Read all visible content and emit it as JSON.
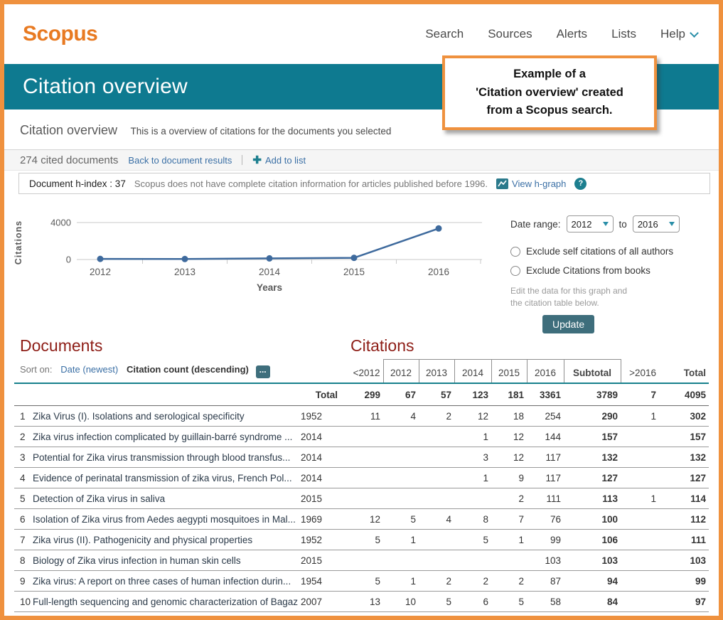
{
  "header": {
    "logo": "Scopus",
    "nav": [
      "Search",
      "Sources",
      "Alerts",
      "Lists",
      "Help"
    ]
  },
  "banner": {
    "title": "Citation overview"
  },
  "annotation": {
    "lines": [
      "Example of a",
      "'Citation overview' created",
      "from a Scopus search."
    ]
  },
  "subtitle": {
    "title": "Citation overview",
    "description": "This is a overview of citations for the documents you selected"
  },
  "toolbar": {
    "cited_documents": "274 cited documents",
    "back_link": "Back to document results",
    "add_to_list": "Add to list"
  },
  "hindex": {
    "label": "Document h-index : 37",
    "note": "Scopus does not have complete citation information for articles published before 1996.",
    "view_link": "View h-graph"
  },
  "chart_data": {
    "type": "line",
    "title": "",
    "x": [
      2012,
      2013,
      2014,
      2015,
      2016
    ],
    "values": [
      67,
      57,
      123,
      181,
      3361
    ],
    "xlabel": "Years",
    "ylabel": "Citations",
    "yticks": [
      0,
      4000
    ],
    "ylim": [
      0,
      4000
    ],
    "grid": "horizontal",
    "legend": "none",
    "line_color": "#3e6a9d"
  },
  "controls": {
    "date_range_label": "Date range:",
    "from_value": "2012",
    "to_label": "to",
    "to_value": "2016",
    "checkbox_self": "Exclude self citations of all authors",
    "checkbox_books": "Exclude Citations from books",
    "note_line1": "Edit the data for this graph and",
    "note_line2": "the citation table below.",
    "update_label": "Update"
  },
  "sections": {
    "documents": "Documents",
    "citations": "Citations"
  },
  "sort": {
    "label": "Sort on:",
    "date_option": "Date (newest)",
    "count_option": "Citation count (descending)",
    "more": "..."
  },
  "icons": {
    "plus": "✚",
    "question": "?"
  },
  "table": {
    "year_columns": [
      "<2012",
      "2012",
      "2013",
      "2014",
      "2015",
      "2016",
      "Subtotal",
      ">2016",
      "Total"
    ],
    "total_label": "Total",
    "totals": [
      "299",
      "67",
      "57",
      "123",
      "181",
      "3361",
      "3789",
      "7",
      "4095"
    ],
    "rows": [
      {
        "num": "1",
        "title": "Zika Virus (I). Isolations and serological specificity",
        "year": "1952",
        "values": [
          "11",
          "4",
          "2",
          "12",
          "18",
          "254",
          "290",
          "1",
          "302"
        ]
      },
      {
        "num": "2",
        "title": "Zika virus infection complicated by guillain-barré syndrome ...",
        "year": "2014",
        "values": [
          "",
          "",
          "",
          "1",
          "12",
          "144",
          "157",
          "",
          "157"
        ]
      },
      {
        "num": "3",
        "title": "Potential for Zika virus transmission through blood transfus...",
        "year": "2014",
        "values": [
          "",
          "",
          "",
          "3",
          "12",
          "117",
          "132",
          "",
          "132"
        ]
      },
      {
        "num": "4",
        "title": "Evidence of perinatal transmission of zika virus, French Pol...",
        "year": "2014",
        "values": [
          "",
          "",
          "",
          "1",
          "9",
          "117",
          "127",
          "",
          "127"
        ]
      },
      {
        "num": "5",
        "title": "Detection of Zika virus in saliva",
        "year": "2015",
        "values": [
          "",
          "",
          "",
          "",
          "2",
          "111",
          "113",
          "1",
          "114"
        ]
      },
      {
        "num": "6",
        "title": "Isolation of Zika virus from Aedes aegypti mosquitoes in Mal...",
        "year": "1969",
        "values": [
          "12",
          "5",
          "4",
          "8",
          "7",
          "76",
          "100",
          "",
          "112"
        ]
      },
      {
        "num": "7",
        "title": "Zika virus (II). Pathogenicity and physical properties",
        "year": "1952",
        "values": [
          "5",
          "1",
          "",
          "5",
          "1",
          "99",
          "106",
          "",
          "111"
        ]
      },
      {
        "num": "8",
        "title": "Biology of Zika virus infection in human skin cells",
        "year": "2015",
        "values": [
          "",
          "",
          "",
          "",
          "",
          "103",
          "103",
          "",
          "103"
        ]
      },
      {
        "num": "9",
        "title": "Zika virus: A report on three cases of human infection durin...",
        "year": "1954",
        "values": [
          "5",
          "1",
          "2",
          "2",
          "2",
          "87",
          "94",
          "",
          "99"
        ]
      },
      {
        "num": "10",
        "title": "Full-length sequencing and genomic characterization of Bagaz...",
        "year": "2007",
        "values": [
          "13",
          "10",
          "5",
          "6",
          "5",
          "58",
          "84",
          "",
          "97"
        ]
      }
    ]
  },
  "colors": {
    "accent_orange": "#ef913e",
    "logo_orange": "#e87a22",
    "banner_teal": "#0e7a90",
    "link_blue": "#3a6fa5",
    "teal_accent": "#1d7f8f",
    "button_teal": "#3e6e7c",
    "heading_maroon": "#8e1e17",
    "line_blue": "#3e6a9d",
    "rule_teal": "#17808c"
  }
}
